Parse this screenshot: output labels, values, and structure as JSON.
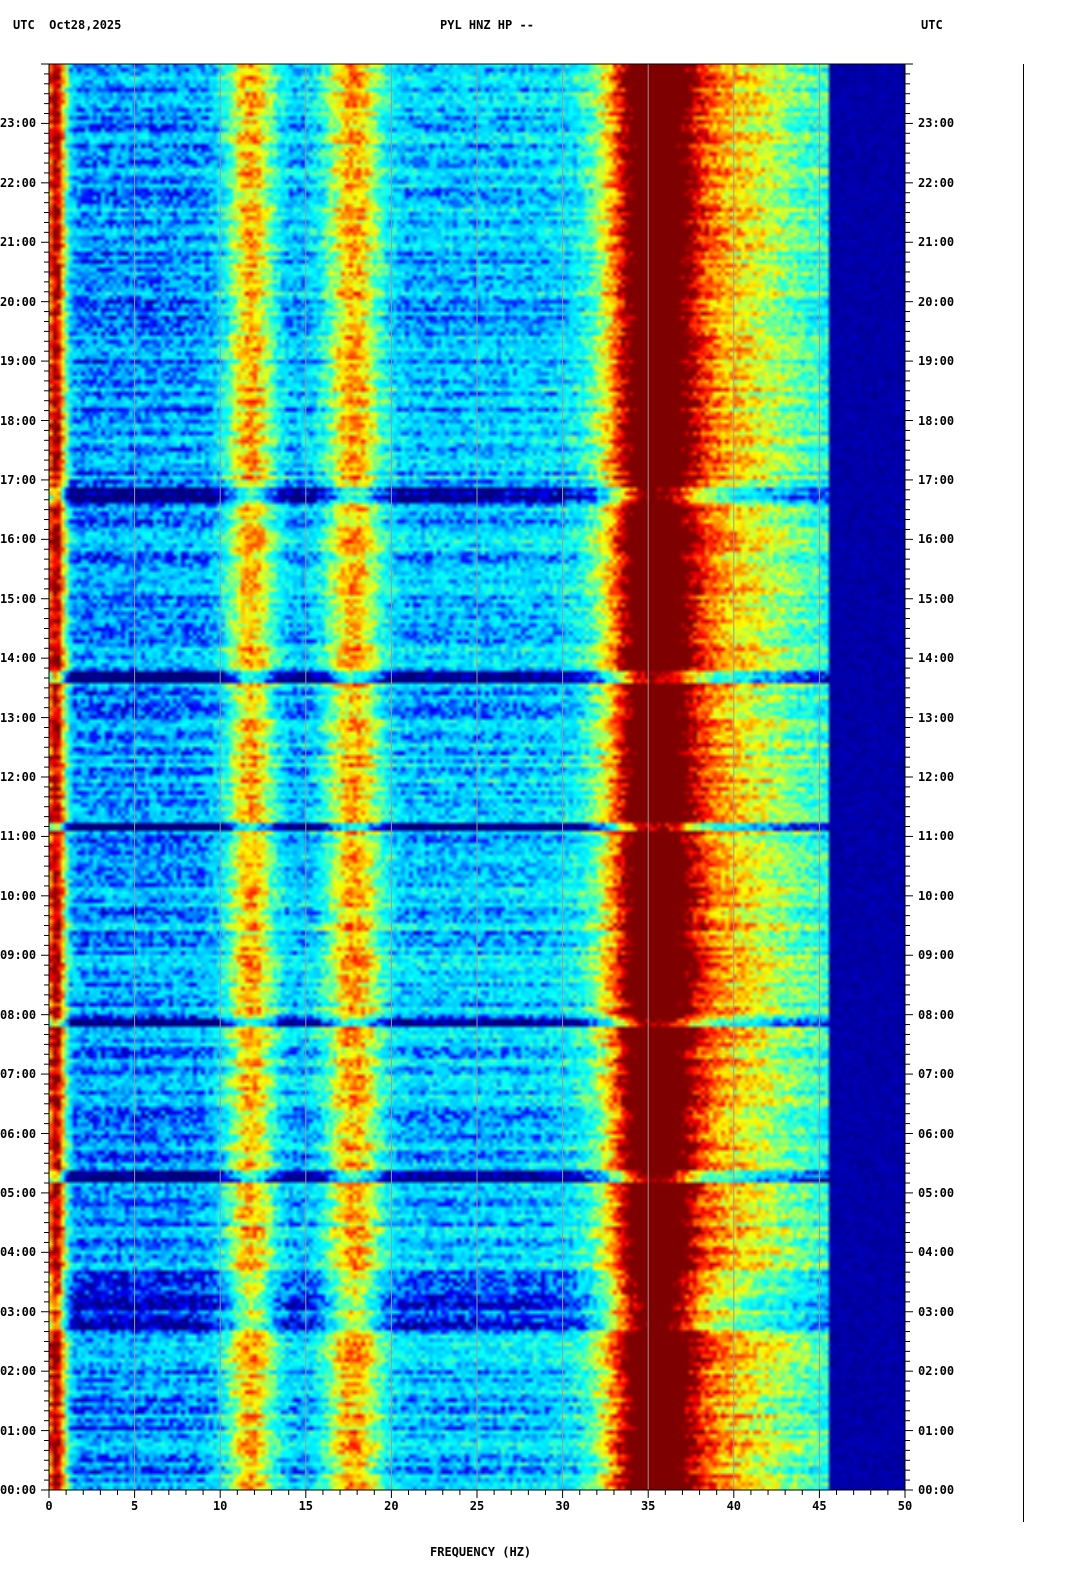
{
  "header": {
    "left": "UTC  Oct28,2025",
    "center": "PYL HNZ HP --",
    "right": "UTC"
  },
  "chart_data": {
    "type": "heatmap",
    "title": "PYL HNZ HP --",
    "date": "Oct28,2025",
    "xlabel": "FREQUENCY (HZ)",
    "ylabel_left": "UTC",
    "ylabel_right": "UTC",
    "xlim": [
      0,
      50
    ],
    "x_ticks": [
      "0",
      "5",
      "10",
      "15",
      "20",
      "25",
      "30",
      "35",
      "40",
      "45",
      "50"
    ],
    "ylim_hours": [
      0,
      24
    ],
    "y_ticks": [
      "00:00",
      "01:00",
      "02:00",
      "03:00",
      "04:00",
      "05:00",
      "06:00",
      "07:00",
      "08:00",
      "09:00",
      "10:00",
      "11:00",
      "12:00",
      "13:00",
      "14:00",
      "15:00",
      "16:00",
      "17:00",
      "18:00",
      "19:00",
      "20:00",
      "21:00",
      "22:00",
      "23:00"
    ],
    "grid": true,
    "colormap": [
      "#00007f",
      "#0000ff",
      "#00bfff",
      "#00ffff",
      "#7fff7f",
      "#ffff00",
      "#ff7f00",
      "#ff0000",
      "#7f0000"
    ],
    "energy_bands_hz": [
      {
        "center": 0.4,
        "width": 0.6,
        "level": 0.75
      },
      {
        "center": 11.8,
        "width": 1.4,
        "level": 0.45
      },
      {
        "center": 17.8,
        "width": 1.6,
        "level": 0.45
      },
      {
        "center": 35.2,
        "width": 2.5,
        "level": 0.8
      },
      {
        "center": 39.0,
        "width": 5.0,
        "level": 0.35
      }
    ],
    "quiet_intervals_utc": [
      {
        "start": 16.6,
        "end": 16.85
      },
      {
        "start": 13.6,
        "end": 13.75
      },
      {
        "start": 11.1,
        "end": 11.2
      },
      {
        "start": 7.8,
        "end": 7.95
      },
      {
        "start": 5.2,
        "end": 5.35
      },
      {
        "start": 2.6,
        "end": 3.7
      }
    ],
    "cutoff_hz": 45.5
  }
}
